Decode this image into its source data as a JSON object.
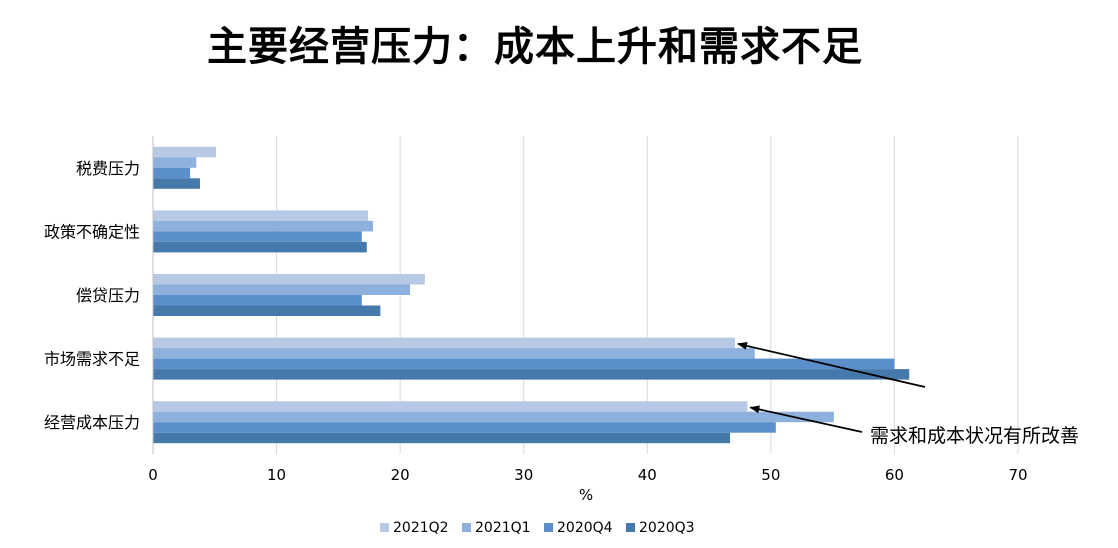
{
  "chart_data": {
    "type": "bar",
    "orientation": "horizontal",
    "title": "主要经营压力：成本上升和需求不足",
    "xlabel": "%",
    "ylabel": "",
    "xlim": [
      0,
      70
    ],
    "x_ticks": [
      0,
      10,
      20,
      30,
      40,
      50,
      60,
      70
    ],
    "grid": "vertical",
    "legend_position": "bottom",
    "categories": [
      "税费压力",
      "政策不确定性",
      "偿贷压力",
      "市场需求不足",
      "经营成本压力"
    ],
    "series": [
      {
        "name": "2021Q2",
        "color": "#b7c9e4",
        "values": [
          5.1,
          17.4,
          22.0,
          47.1,
          48.1
        ]
      },
      {
        "name": "2021Q1",
        "color": "#8db0dc",
        "values": [
          3.5,
          17.8,
          20.8,
          48.7,
          55.1
        ]
      },
      {
        "name": "2020Q4",
        "color": "#5b8fcc",
        "values": [
          3.0,
          16.9,
          16.9,
          60.0,
          50.4
        ]
      },
      {
        "name": "2020Q3",
        "color": "#4679ab",
        "values": [
          3.8,
          17.3,
          18.4,
          61.2,
          46.7
        ]
      }
    ],
    "annotations": [
      {
        "text": "需求和成本状况有所改善",
        "points_to": [
          "市场需求不足",
          "经营成本压力"
        ]
      }
    ]
  }
}
